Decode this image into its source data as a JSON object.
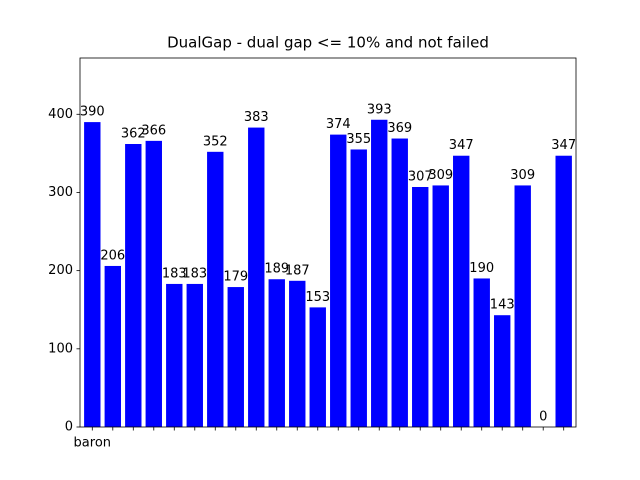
{
  "chart_data": {
    "type": "bar",
    "title": "DualGap - dual gap <= 10% and not failed",
    "categories": [
      "baron",
      null,
      null,
      null,
      null,
      null,
      null,
      null,
      null,
      null,
      null,
      null,
      null,
      null,
      null,
      null,
      null,
      null,
      null,
      null,
      null,
      null,
      null,
      null
    ],
    "values": [
      390,
      206,
      362,
      366,
      183,
      183,
      352,
      179,
      383,
      189,
      187,
      153,
      374,
      355,
      393,
      369,
      307,
      309,
      347,
      190,
      143,
      309,
      0,
      347
    ],
    "color": "#0000ff",
    "ylim": [
      0,
      472
    ],
    "yticks": [
      0,
      100,
      200,
      300,
      400
    ],
    "grid": false
  }
}
